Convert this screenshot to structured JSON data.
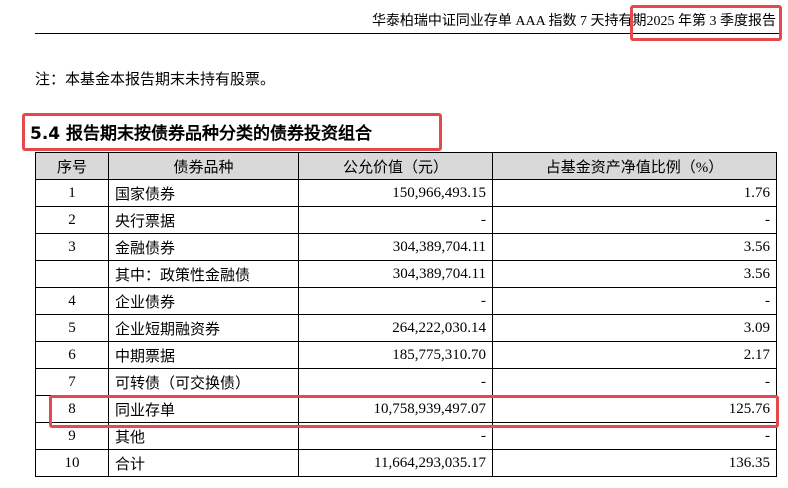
{
  "header": {
    "title": "华泰柏瑞中证同业存单 AAA 指数 7 天持有期",
    "period": "2025 年第 3 季度报告"
  },
  "note": "注：本基金本报告期末未持有股票。",
  "section_title": "5.4 报告期末按债券品种分类的债券投资组合",
  "table": {
    "columns": [
      "序号",
      "债券品种",
      "公允价值（元）",
      "占基金资产净值比例（%）"
    ],
    "rows": [
      [
        "1",
        "国家债券",
        "150,966,493.15",
        "1.76"
      ],
      [
        "2",
        "央行票据",
        "-",
        "-"
      ],
      [
        "3",
        "金融债券",
        "304,389,704.11",
        "3.56"
      ],
      [
        null,
        "其中：政策性金融债",
        "304,389,704.11",
        "3.56"
      ],
      [
        "4",
        "企业债券",
        "-",
        "-"
      ],
      [
        "5",
        "企业短期融资券",
        "264,222,030.14",
        "3.09"
      ],
      [
        "6",
        "中期票据",
        "185,775,310.70",
        "2.17"
      ],
      [
        "7",
        "可转债（可交换债）",
        "-",
        "-"
      ],
      [
        "8",
        "同业存单",
        "10,758,939,497.07",
        "125.76"
      ],
      [
        "9",
        "其他",
        "-",
        "-"
      ],
      [
        "10",
        "合计",
        "11,664,293,035.17",
        "136.35"
      ]
    ]
  }
}
